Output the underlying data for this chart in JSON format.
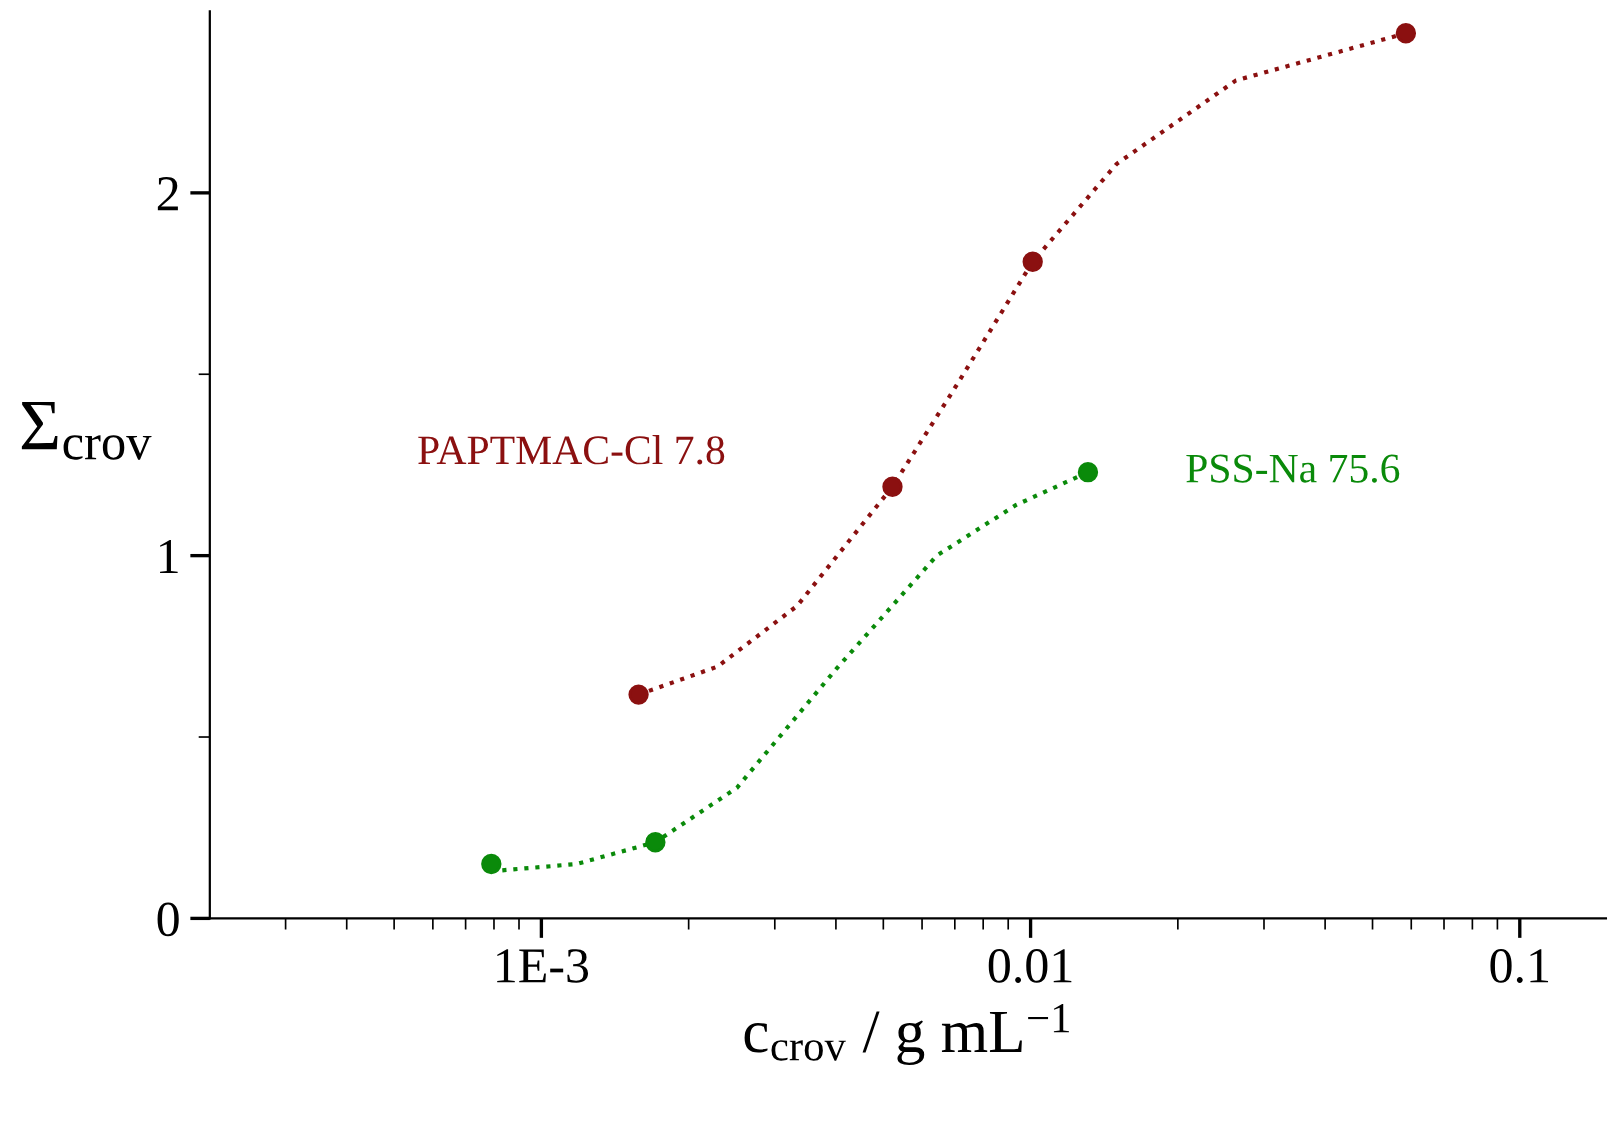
{
  "chart_data": {
    "type": "scatter",
    "xlabel": "c$_{crov}$ / g mL$^{−1}$",
    "ylabel": "Σ$_{crov}$",
    "log": "x",
    "xlim": [
      0.00021,
      0.15
    ],
    "ylim": [
      0,
      2.5
    ],
    "xticks": [
      {
        "value": 0.001,
        "label": "1E-3"
      },
      0.01,
      0.1
    ],
    "yticks": [
      0,
      1,
      2
    ],
    "grid": false,
    "legend": false,
    "marker": "circle",
    "series": [
      {
        "name": "PAPTMAC-Cl 7.8",
        "color": "#8b1010",
        "x": [
          0.00158,
          0.00522,
          0.0101,
          0.0585
        ],
        "values": [
          0.617,
          1.19,
          1.81,
          2.44
        ]
      },
      {
        "name": "PSS-Na 75.6",
        "color": "#0a8a0a",
        "x": [
          0.00079,
          0.00171,
          0.0131
        ],
        "values": [
          0.15,
          0.21,
          1.23
        ]
      },
      {
        "type": "line",
        "line_style": "dotted",
        "marker": "none",
        "color": "#8b1010",
        "x": [
          0.00158,
          0.00229,
          0.00333,
          0.00522,
          0.00706,
          0.0101,
          0.015,
          0.0263,
          0.0585
        ],
        "values": [
          0.617,
          0.694,
          0.861,
          1.19,
          1.47,
          1.81,
          2.08,
          2.31,
          2.44
        ]
      },
      {
        "type": "line",
        "line_style": "dotted",
        "marker": "none",
        "color": "#0a8a0a",
        "x": [
          0.00079,
          0.00118,
          0.00171,
          0.00251,
          0.00402,
          0.00643,
          0.00935,
          0.0131
        ],
        "values": [
          0.13,
          0.15,
          0.21,
          0.36,
          0.69,
          1.0,
          1.14,
          1.23
        ]
      }
    ]
  }
}
